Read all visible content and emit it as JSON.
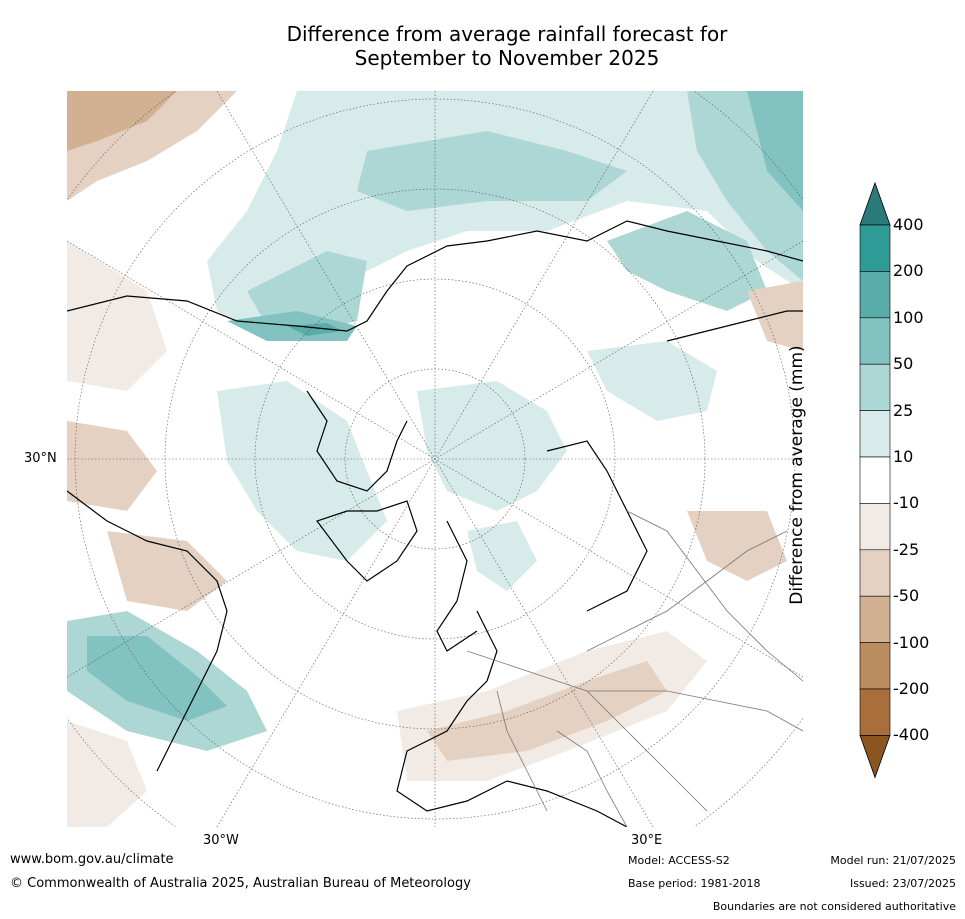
{
  "title_line1": "Difference from average rainfall forecast for",
  "title_line2": "September to November 2025",
  "map_labels": {
    "lat_30n": "30°N",
    "lon_30w": "30°W",
    "lon_30e": "30°E"
  },
  "colorbar": {
    "label": "Difference from average (mm)",
    "ticks": [
      "400",
      "200",
      "100",
      "50",
      "25",
      "10",
      "-10",
      "-25",
      "-50",
      "-100",
      "-200",
      "-400"
    ],
    "colors": [
      "#2a7b79",
      "#2e9b97",
      "#58adab",
      "#82c2c0",
      "#acd7d5",
      "#d6ebea",
      "#ffffff",
      "#f2ebe5",
      "#e4d1c1",
      "#d1b192",
      "#bc8c61",
      "#a86f3a",
      "#8b5522"
    ]
  },
  "footer": {
    "website": "www.bom.gov.au/climate",
    "copyright": "© Commonwealth of Australia 2025, Australian Bureau of Meteorology",
    "model": "Model: ACCESS-S2",
    "base_period": "Base period: 1981-2018",
    "model_run": "Model run: 21/07/2025",
    "issued": "Issued: 23/07/2025",
    "disclaimer": "Boundaries are not considered authoritative"
  }
}
